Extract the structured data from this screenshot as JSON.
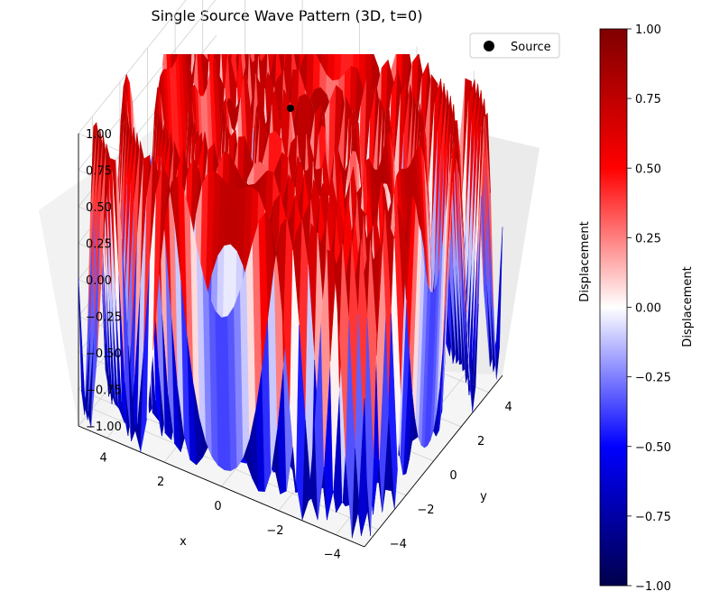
{
  "chart_data": {
    "type": "surface3d",
    "title": "Single Source Wave Pattern (3D, t=0)",
    "xlabel": "x",
    "ylabel": "y",
    "zlabel": "Displacement",
    "xlim": [
      -5,
      5
    ],
    "ylim": [
      -5,
      5
    ],
    "zlim": [
      -1,
      1
    ],
    "xticks": [
      "−4",
      "−2",
      "0",
      "2",
      "4"
    ],
    "yticks": [
      "−4",
      "−2",
      "0",
      "2",
      "4"
    ],
    "zticks": [
      "−1.00",
      "−0.75",
      "−0.50",
      "−0.25",
      "0.00",
      "0.25",
      "0.50",
      "0.75",
      "1.00"
    ],
    "source": {
      "x": 0,
      "y": 0
    },
    "legend": {
      "position": "top-right",
      "entries": [
        {
          "label": "Source",
          "marker": "circle",
          "color": "#000000"
        }
      ]
    },
    "colorbar": {
      "label": "Displacement",
      "colormap": "seismic",
      "range": [
        -1,
        1
      ],
      "ticks": [
        "−1.00",
        "−0.75",
        "−0.50",
        "−0.25",
        "0.00",
        "0.25",
        "0.50",
        "0.75",
        "1.00"
      ]
    },
    "grid": true
  }
}
